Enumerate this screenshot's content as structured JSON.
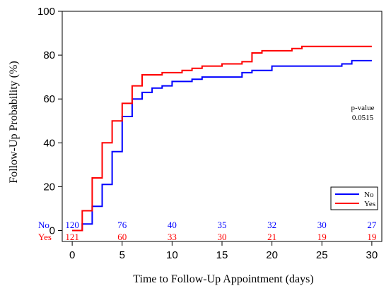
{
  "chart_data": {
    "type": "line",
    "step": true,
    "xlabel": "Time to Follow-Up Appointment (days)",
    "ylabel": "Follow-Up Probability (%)",
    "xlim": [
      -1,
      31
    ],
    "ylim": [
      -5,
      100
    ],
    "xticks": [
      0,
      5,
      10,
      15,
      20,
      25,
      30
    ],
    "yticks": [
      0,
      20,
      40,
      60,
      80,
      100
    ],
    "annotation": {
      "title": "p-value",
      "value": "0.0515"
    },
    "legend": {
      "placement": "bottom-right"
    },
    "series": [
      {
        "name": "No",
        "color": "#0000ff",
        "points": [
          [
            0,
            0
          ],
          [
            1,
            0
          ],
          [
            1,
            3
          ],
          [
            2,
            3
          ],
          [
            2,
            11
          ],
          [
            3,
            11
          ],
          [
            3,
            21
          ],
          [
            4,
            21
          ],
          [
            4,
            36
          ],
          [
            5,
            36
          ],
          [
            5,
            52
          ],
          [
            6,
            52
          ],
          [
            6,
            60
          ],
          [
            7,
            60
          ],
          [
            7,
            63
          ],
          [
            8,
            63
          ],
          [
            8,
            65
          ],
          [
            9,
            65
          ],
          [
            9,
            66
          ],
          [
            10,
            66
          ],
          [
            10,
            68
          ],
          [
            12,
            68
          ],
          [
            12,
            69
          ],
          [
            13,
            69
          ],
          [
            13,
            70
          ],
          [
            17,
            70
          ],
          [
            17,
            72
          ],
          [
            18,
            72
          ],
          [
            18,
            73
          ],
          [
            20,
            73
          ],
          [
            20,
            75
          ],
          [
            27,
            75
          ],
          [
            27,
            76
          ],
          [
            28,
            76
          ],
          [
            28,
            77.5
          ],
          [
            30,
            77.5
          ]
        ]
      },
      {
        "name": "Yes",
        "color": "#ff0000",
        "points": [
          [
            0,
            0
          ],
          [
            1,
            0
          ],
          [
            1,
            9
          ],
          [
            2,
            9
          ],
          [
            2,
            24
          ],
          [
            3,
            24
          ],
          [
            3,
            40
          ],
          [
            4,
            40
          ],
          [
            4,
            50
          ],
          [
            5,
            50
          ],
          [
            5,
            58
          ],
          [
            6,
            58
          ],
          [
            6,
            66
          ],
          [
            7,
            66
          ],
          [
            7,
            71
          ],
          [
            9,
            71
          ],
          [
            9,
            72
          ],
          [
            11,
            72
          ],
          [
            11,
            73
          ],
          [
            12,
            73
          ],
          [
            12,
            74
          ],
          [
            13,
            74
          ],
          [
            13,
            75
          ],
          [
            15,
            75
          ],
          [
            15,
            76
          ],
          [
            17,
            76
          ],
          [
            17,
            77
          ],
          [
            18,
            77
          ],
          [
            18,
            81
          ],
          [
            19,
            81
          ],
          [
            19,
            82
          ],
          [
            22,
            82
          ],
          [
            22,
            83
          ],
          [
            23,
            83
          ],
          [
            23,
            84
          ],
          [
            30,
            84
          ]
        ]
      }
    ],
    "risk_table": {
      "times": [
        0,
        5,
        10,
        15,
        20,
        25,
        30
      ],
      "rows": [
        {
          "name": "No",
          "color": "#0000ff",
          "values": [
            "120",
            "76",
            "40",
            "35",
            "32",
            "30",
            "27"
          ]
        },
        {
          "name": "Yes",
          "color": "#ff0000",
          "values": [
            "121",
            "60",
            "33",
            "30",
            "21",
            "19",
            "19"
          ]
        }
      ]
    }
  }
}
